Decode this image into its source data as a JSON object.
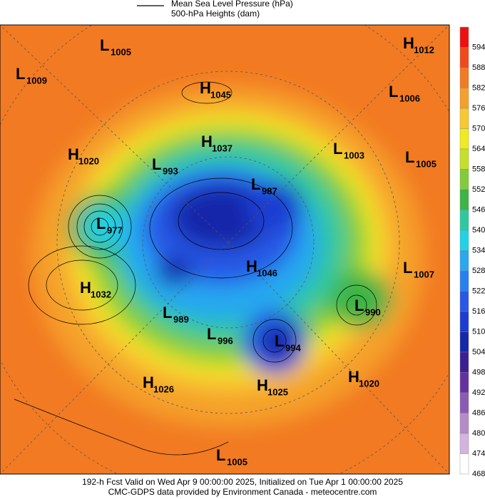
{
  "header": {
    "legend": [
      "Mean Sea Level Pressure (hPa)",
      "500-hPa Heights (dam)"
    ]
  },
  "colorbar": {
    "labels": [
      594,
      588,
      582,
      576,
      570,
      564,
      558,
      552,
      546,
      540,
      534,
      528,
      522,
      516,
      510,
      504,
      498,
      492,
      486,
      480,
      474,
      468
    ],
    "colors": [
      "#ee1010",
      "#f04a1a",
      "#f27a22",
      "#f5a02a",
      "#f8c832",
      "#f0eb1e",
      "#c4e028",
      "#82cc3a",
      "#3cb446",
      "#2ec8a0",
      "#22d2e6",
      "#28a8f0",
      "#2880f0",
      "#2858e6",
      "#1e3cd2",
      "#1428aa",
      "#3c1e96",
      "#6432a0",
      "#8c5ab4",
      "#b48cc8",
      "#d2b4dc",
      "#ffffff"
    ]
  },
  "centers": [
    {
      "letter": "L",
      "value": 1005
    },
    {
      "letter": "H",
      "value": 1012
    },
    {
      "letter": "L",
      "value": 1009
    },
    {
      "letter": "H",
      "value": 1045
    },
    {
      "letter": "L",
      "value": 1006
    },
    {
      "letter": "H",
      "value": 1037
    },
    {
      "letter": "L",
      "value": 1003
    },
    {
      "letter": "H",
      "value": 1020
    },
    {
      "letter": "L",
      "value": 993
    },
    {
      "letter": "L",
      "value": 1005
    },
    {
      "letter": "L",
      "value": 987
    },
    {
      "letter": "L",
      "value": 977
    },
    {
      "letter": "H",
      "value": 1046
    },
    {
      "letter": "L",
      "value": 1007
    },
    {
      "letter": "H",
      "value": 1032
    },
    {
      "letter": "L",
      "value": 990
    },
    {
      "letter": "L",
      "value": 989
    },
    {
      "letter": "L",
      "value": 996
    },
    {
      "letter": "L",
      "value": 994
    },
    {
      "letter": "H",
      "value": 1020
    },
    {
      "letter": "H",
      "value": 1026
    },
    {
      "letter": "H",
      "value": 1025
    },
    {
      "letter": "L",
      "value": 1005
    }
  ],
  "footer": [
    "192-h Fcst Valid on Wed Apr  9 00:00:00 2025, Initialized on Tue Apr  1 00:00:00 2025",
    "CMC-GDPS data provided by Environment Canada - meteocentre.com"
  ]
}
